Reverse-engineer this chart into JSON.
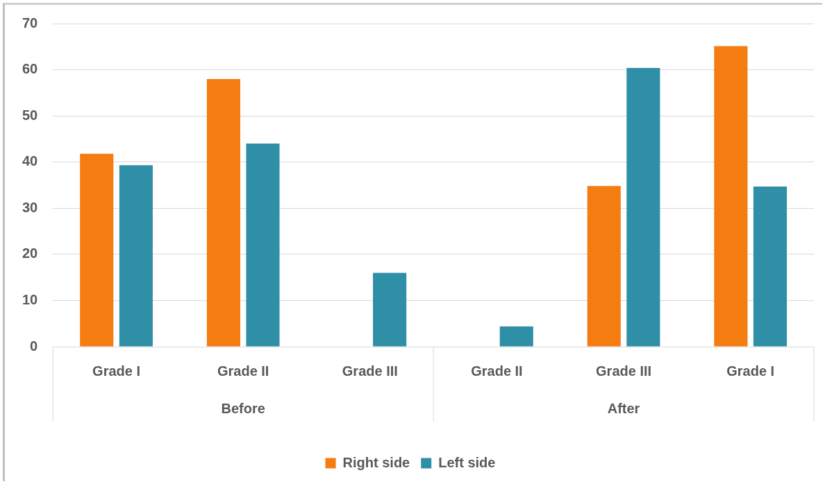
{
  "chart_data": {
    "type": "bar",
    "categories": [
      "Grade I",
      "Grade II",
      "Grade III",
      "Grade II",
      "Grade III",
      "Grade I"
    ],
    "series": [
      {
        "name": "Right side",
        "color": "#f47c10",
        "values": [
          41.8,
          58,
          0,
          0,
          34.8,
          65.1
        ]
      },
      {
        "name": "Left side",
        "color": "#2e8fa6",
        "values": [
          39.3,
          44,
          16,
          4.4,
          60.4,
          34.7
        ]
      }
    ],
    "ylim": [
      0,
      70
    ],
    "yticks": [
      0,
      10,
      20,
      30,
      40,
      50,
      60,
      70
    ],
    "grid": "y",
    "legend": "bottom",
    "annotations": [
      "Before",
      "After"
    ]
  }
}
